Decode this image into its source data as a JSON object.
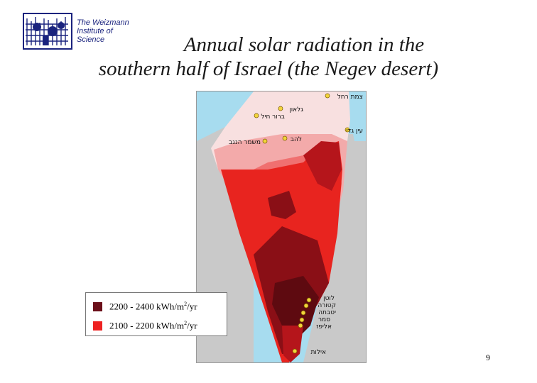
{
  "logo": {
    "lines": [
      "The Weizmann",
      "Institute of",
      "Science"
    ],
    "color": "#1a237e"
  },
  "title": {
    "line1": "Annual solar radiation in the",
    "line2": "southern half of Israel (the Negev desert)"
  },
  "legend": [
    {
      "label_prefix": "2200 - 2400 kWh/m",
      "sup": "2",
      "label_suffix": "/yr",
      "color": "#6b0f1a"
    },
    {
      "label_prefix": "2100 - 2200 kWh/m",
      "sup": "2",
      "label_suffix": "/yr",
      "color": "#ee2222"
    }
  ],
  "places": {
    "p1": "צמת רחל",
    "p2": "גלאון",
    "p3": "ברור חיל",
    "p4": "עין גדי",
    "p5": "להב",
    "p6": "משמר הנגב",
    "p7": "לוטן",
    "p8": "קטורה",
    "p9": "יטבתה",
    "p10": "סמר",
    "p11": "אליפז",
    "p12": "אילות"
  },
  "colors": {
    "sea": "#a7dcef",
    "land_outside": "#c9c9c9",
    "zone_lightest": "#f8e0e0",
    "zone_light": "#f3aaaa",
    "zone_mid": "#f07070",
    "zone_red": "#e8241f",
    "zone_dark": "#b5151b",
    "zone_darker": "#8a0f16",
    "zone_darkest": "#5e0a10",
    "marker": "#f2d43a"
  },
  "page_number": "9"
}
